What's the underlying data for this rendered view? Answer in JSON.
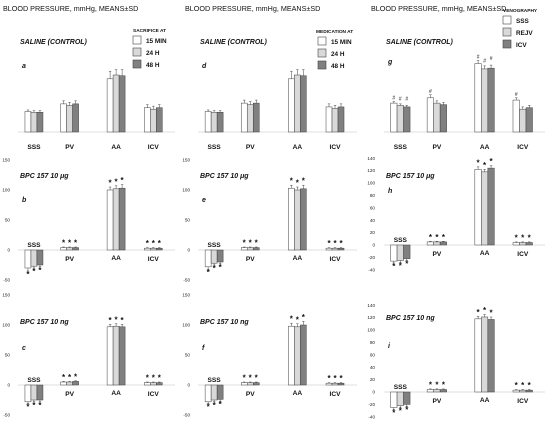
{
  "columns": [
    {
      "title": "BLOOD PRESSURE, mmHg, MEANS±SD",
      "legend": {
        "title": "SACRIFICE AT",
        "items": [
          {
            "label": "15 MIN",
            "color": "#ffffff"
          },
          {
            "label": "24 H",
            "color": "#d9d9d9"
          },
          {
            "label": "48 H",
            "color": "#808080"
          }
        ]
      }
    },
    {
      "title": "BLOOD PRESSURE, mmHg, MEANS±SD",
      "legend": {
        "title": "MEDICATION AT",
        "items": [
          {
            "label": "15 MIN",
            "color": "#ffffff"
          },
          {
            "label": "24 H",
            "color": "#d9d9d9"
          },
          {
            "label": "48 H",
            "color": "#808080"
          }
        ]
      }
    },
    {
      "title": "BLOOD PRESSURE, mmHg, MEANS±SD",
      "legend": {
        "title": "VENOGRAPHY",
        "items": [
          {
            "label": "SSS",
            "color": "#ffffff"
          },
          {
            "label": "REJV",
            "color": "#d9d9d9"
          },
          {
            "label": "ICV",
            "color": "#808080"
          }
        ]
      }
    }
  ],
  "chart_data": [
    {
      "type": "bar",
      "panel": "a",
      "label": "SALINE (CONTROL)",
      "categories": [
        "SSS",
        "PV",
        "AA",
        "ICV"
      ],
      "series": [
        {
          "name": "15 MIN",
          "values": [
            27,
            37,
            70,
            32
          ]
        },
        {
          "name": "24 H",
          "values": [
            26,
            35,
            75,
            30
          ]
        },
        {
          "name": "48 H",
          "values": [
            26,
            37,
            74,
            32
          ]
        }
      ],
      "errors": [
        [
          2,
          4,
          10,
          4
        ],
        [
          2,
          4,
          7,
          4
        ],
        [
          2,
          4,
          8,
          4
        ]
      ],
      "ylim": [
        0,
        100
      ],
      "yticks": [],
      "stars": [],
      "hash": []
    },
    {
      "type": "bar",
      "panel": "b",
      "label": "BPC 157 10 μg",
      "categories": [
        "SSS",
        "PV",
        "AA",
        "ICV"
      ],
      "series": [
        {
          "name": "15 MIN",
          "values": [
            -30,
            4,
            100,
            3
          ]
        },
        {
          "name": "24 H",
          "values": [
            -27,
            4,
            102,
            3
          ]
        },
        {
          "name": "48 H",
          "values": [
            -25,
            4,
            103,
            3
          ]
        }
      ],
      "errors": [
        [
          5,
          1,
          5,
          1
        ],
        [
          3,
          1,
          5,
          1
        ],
        [
          3,
          1,
          6,
          1
        ]
      ],
      "ylim": [
        -40,
        150
      ],
      "yticks": [
        150,
        100,
        50,
        0,
        -50
      ],
      "stars": [
        1,
        1,
        1,
        1
      ],
      "hash": []
    },
    {
      "type": "bar",
      "panel": "c",
      "label": "BPC 157 10 ng",
      "categories": [
        "SSS",
        "PV",
        "AA",
        "ICV"
      ],
      "series": [
        {
          "name": "15 MIN",
          "values": [
            -28,
            5,
            97,
            4
          ]
        },
        {
          "name": "24 H",
          "values": [
            -25,
            5,
            98,
            4
          ]
        },
        {
          "name": "48 H",
          "values": [
            -25,
            6,
            97,
            4
          ]
        }
      ],
      "errors": [
        [
          3,
          1,
          4,
          1
        ],
        [
          3,
          1,
          4,
          1
        ],
        [
          3,
          1,
          4,
          1
        ]
      ],
      "ylim": [
        -40,
        150
      ],
      "yticks": [
        150,
        100,
        50,
        0,
        -50
      ],
      "stars": [
        1,
        1,
        1,
        1
      ],
      "hash": []
    },
    {
      "type": "bar",
      "panel": "d",
      "label": "SALINE (CONTROL)",
      "categories": [
        "SSS",
        "PV",
        "AA",
        "ICV"
      ],
      "series": [
        {
          "name": "15 MIN",
          "values": [
            27,
            38,
            70,
            33
          ]
        },
        {
          "name": "24 H",
          "values": [
            26,
            36,
            75,
            31
          ]
        },
        {
          "name": "48 H",
          "values": [
            26,
            38,
            74,
            33
          ]
        }
      ],
      "errors": [
        [
          2,
          4,
          10,
          4
        ],
        [
          2,
          4,
          7,
          4
        ],
        [
          2,
          4,
          8,
          4
        ]
      ],
      "ylim": [
        0,
        100
      ],
      "yticks": [],
      "stars": [],
      "hash": []
    },
    {
      "type": "bar",
      "panel": "e",
      "label": "BPC 157 10 μg",
      "categories": [
        "SSS",
        "PV",
        "AA",
        "ICV"
      ],
      "series": [
        {
          "name": "15 MIN",
          "values": [
            -28,
            4,
            103,
            3
          ]
        },
        {
          "name": "24 H",
          "values": [
            -22,
            4,
            100,
            3
          ]
        },
        {
          "name": "48 H",
          "values": [
            -20,
            4,
            102,
            3
          ]
        }
      ],
      "errors": [
        [
          4,
          1,
          5,
          1
        ],
        [
          3,
          1,
          5,
          1
        ],
        [
          3,
          1,
          6,
          1
        ]
      ],
      "ylim": [
        -40,
        150
      ],
      "yticks": [
        150,
        100,
        50,
        0,
        -50
      ],
      "stars": [
        1,
        1,
        1,
        1
      ],
      "hash": []
    },
    {
      "type": "bar",
      "panel": "f",
      "label": "BPC 157 10 ng",
      "categories": [
        "SSS",
        "PV",
        "AA",
        "ICV"
      ],
      "series": [
        {
          "name": "15 MIN",
          "values": [
            -28,
            4,
            98,
            3
          ]
        },
        {
          "name": "24 H",
          "values": [
            -25,
            4,
            97,
            3
          ]
        },
        {
          "name": "48 H",
          "values": [
            -24,
            4,
            100,
            3
          ]
        }
      ],
      "errors": [
        [
          3,
          1,
          5,
          1
        ],
        [
          3,
          1,
          5,
          1
        ],
        [
          3,
          1,
          6,
          1
        ]
      ],
      "ylim": [
        -40,
        150
      ],
      "yticks": [
        150,
        100,
        50,
        0,
        -50
      ],
      "stars": [
        1,
        1,
        1,
        1
      ],
      "hash": []
    },
    {
      "type": "bar",
      "panel": "g",
      "label": "SALINE (CONTROL)",
      "categories": [
        "SSS",
        "PV",
        "AA",
        "ICV"
      ],
      "series": [
        {
          "name": "SSS",
          "values": [
            38,
            45,
            90,
            42
          ]
        },
        {
          "name": "REJV",
          "values": [
            35,
            38,
            83,
            30
          ]
        },
        {
          "name": "ICV",
          "values": [
            33,
            36,
            84,
            32
          ]
        }
      ],
      "errors": [
        [
          2,
          4,
          4,
          3
        ],
        [
          2,
          3,
          4,
          3
        ],
        [
          2,
          3,
          4,
          3
        ]
      ],
      "ylim": [
        0,
        100
      ],
      "yticks": [],
      "stars": [],
      "hash": [
        [
          1,
          1,
          1
        ],
        [
          1,
          0,
          0
        ],
        [
          1,
          1,
          1
        ],
        [
          1,
          0,
          0
        ]
      ]
    },
    {
      "type": "bar",
      "panel": "h",
      "label": "BPC 157 10 μg",
      "categories": [
        "SSS",
        "PV",
        "AA",
        "ICV"
      ],
      "series": [
        {
          "name": "SSS",
          "values": [
            -26,
            5,
            122,
            4
          ]
        },
        {
          "name": "REJV",
          "values": [
            -25,
            5,
            118,
            4
          ]
        },
        {
          "name": "ICV",
          "values": [
            -22,
            5,
            124,
            4
          ]
        }
      ],
      "errors": [
        [
          3,
          1,
          4,
          1
        ],
        [
          3,
          1,
          4,
          1
        ],
        [
          3,
          1,
          4,
          1
        ]
      ],
      "ylim": [
        -40,
        150
      ],
      "yticks": [
        140,
        120,
        100,
        80,
        60,
        40,
        20,
        0,
        -20,
        -40
      ],
      "stars": [
        1,
        1,
        1,
        1
      ],
      "hash": []
    },
    {
      "type": "bar",
      "panel": "i",
      "label": "BPC 157 10 ng",
      "categories": [
        "SSS",
        "PV",
        "AA",
        "ICV"
      ],
      "series": [
        {
          "name": "SSS",
          "values": [
            -25,
            4,
            118,
            3
          ]
        },
        {
          "name": "REJV",
          "values": [
            -22,
            4,
            121,
            3
          ]
        },
        {
          "name": "ICV",
          "values": [
            -20,
            4,
            117,
            3
          ]
        }
      ],
      "errors": [
        [
          3,
          1,
          4,
          1
        ],
        [
          3,
          1,
          4,
          1
        ],
        [
          3,
          1,
          4,
          1
        ]
      ],
      "ylim": [
        -40,
        150
      ],
      "yticks": [
        140,
        120,
        100,
        80,
        60,
        40,
        20,
        0,
        -20,
        -40
      ],
      "stars": [
        1,
        1,
        1,
        1
      ],
      "hash": []
    }
  ]
}
